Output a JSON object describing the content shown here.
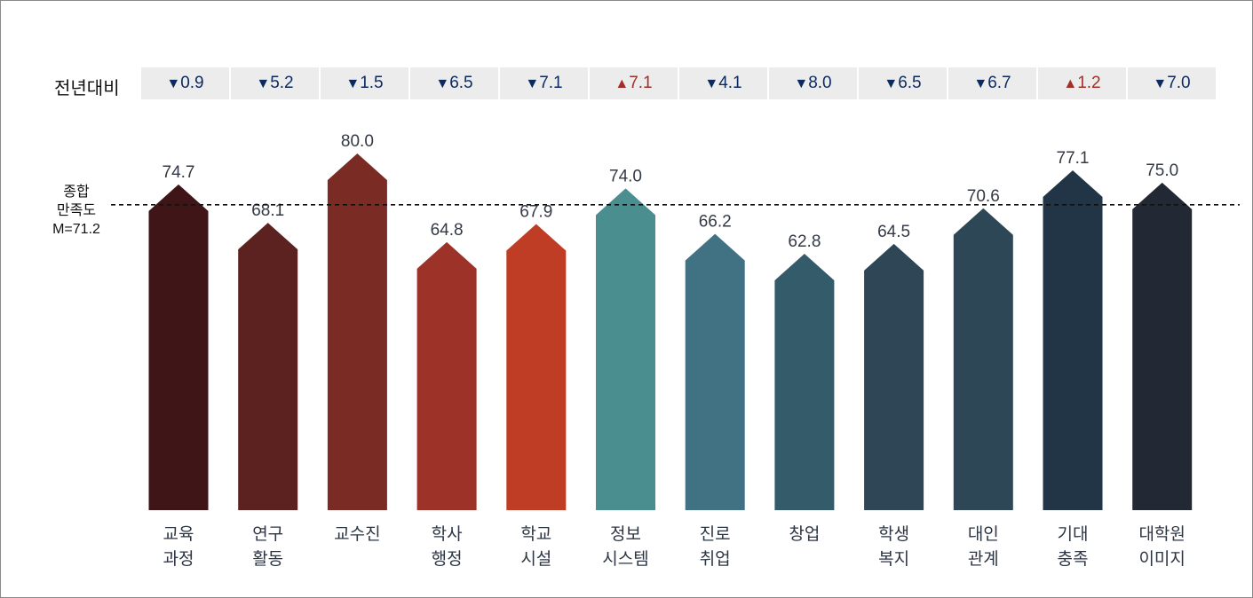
{
  "chart_data": {
    "type": "bar",
    "title": "",
    "categories": [
      [
        "교육",
        "과정"
      ],
      [
        "연구",
        "활동"
      ],
      [
        "교수진"
      ],
      [
        "학사",
        "행정"
      ],
      [
        "학교",
        "시설"
      ],
      [
        "정보",
        "시스템"
      ],
      [
        "진로",
        "취업"
      ],
      [
        "창업"
      ],
      [
        "학생",
        "복지"
      ],
      [
        "대인",
        "관계"
      ],
      [
        "기대",
        "충족"
      ],
      [
        "대학원",
        "이미지"
      ]
    ],
    "values": [
      74.7,
      68.1,
      80.0,
      64.8,
      67.9,
      74.0,
      66.2,
      62.8,
      64.5,
      70.6,
      77.1,
      75.0
    ],
    "value_labels": [
      "74.7",
      "68.1",
      "80.0",
      "64.8",
      "67.9",
      "74.0",
      "66.2",
      "62.8",
      "64.5",
      "70.6",
      "77.1",
      "75.0"
    ],
    "colors": [
      "#401518",
      "#5c221f",
      "#7a2b24",
      "#9c3228",
      "#c03d25",
      "#4a8e8f",
      "#417283",
      "#345b6a",
      "#2e4656",
      "#2e4757",
      "#213546",
      "#222934"
    ],
    "reference_line": {
      "value": 71.2,
      "label": [
        "종합",
        "만족도",
        "M=71.2"
      ]
    },
    "yoy": {
      "label": "전년대비",
      "direction": [
        "down",
        "down",
        "down",
        "down",
        "down",
        "up",
        "down",
        "down",
        "down",
        "down",
        "up",
        "down"
      ],
      "values": [
        "0.9",
        "5.2",
        "1.5",
        "6.5",
        "7.1",
        "7.1",
        "4.1",
        "8.0",
        "6.5",
        "6.7",
        "1.2",
        "7.0"
      ],
      "arrows": {
        "up": "▲",
        "down": "▼"
      },
      "colors": {
        "up": "#a0302a",
        "down": "#0d2a5e"
      }
    },
    "xlabel": "",
    "ylabel": "",
    "grid": false
  }
}
